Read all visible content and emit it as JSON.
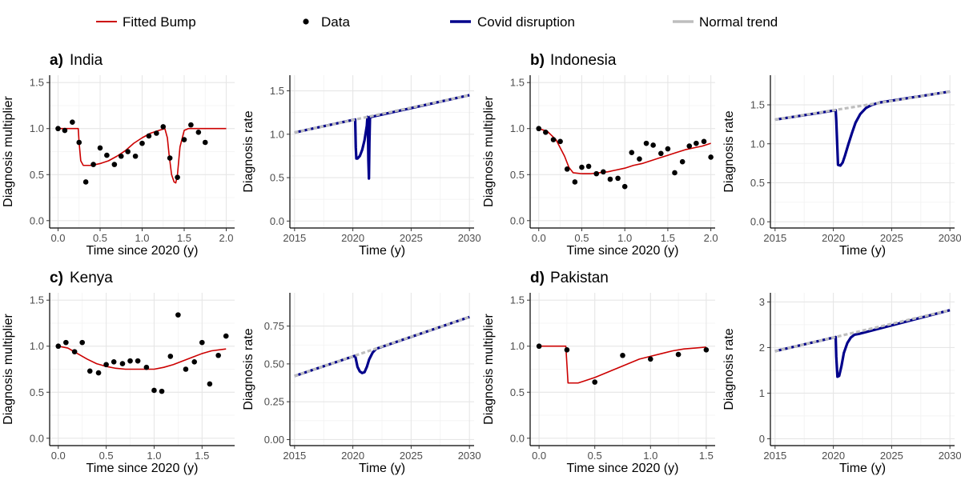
{
  "legend": {
    "items": [
      {
        "key": "fitted",
        "label": "Fitted Bump",
        "color": "#cc0000",
        "symbol": "line"
      },
      {
        "key": "data",
        "label": "Data",
        "color": "#000000",
        "symbol": "point"
      },
      {
        "key": "covid",
        "label": "Covid disruption",
        "color": "#00008b",
        "symbol": "line"
      },
      {
        "key": "normal",
        "label": "Normal trend",
        "color": "#bebebe",
        "symbol": "line"
      }
    ]
  },
  "panels": [
    {
      "tag": "a)",
      "country": "India"
    },
    {
      "tag": "b)",
      "country": "Indonesia"
    },
    {
      "tag": "c)",
      "country": "Kenya"
    },
    {
      "tag": "d)",
      "country": "Pakistan"
    }
  ],
  "chart_data": [
    {
      "id": "a-multiplier",
      "type": "line",
      "xlabel": "Time since 2020 (y)",
      "ylabel": "Diagnosis multiplier",
      "xlim": [
        -0.1,
        2.1
      ],
      "ylim": [
        -0.08,
        1.58
      ],
      "xticks": [
        "0.0",
        "0.5",
        "1.0",
        "1.5",
        "2.0"
      ],
      "yticks": [
        "0.0",
        "0.5",
        "1.0",
        "1.5"
      ],
      "points": {
        "x": [
          0,
          0.08,
          0.17,
          0.25,
          0.33,
          0.42,
          0.5,
          0.58,
          0.67,
          0.75,
          0.83,
          0.92,
          1.0,
          1.08,
          1.17,
          1.25,
          1.33,
          1.42,
          1.5,
          1.58,
          1.67,
          1.75
        ],
        "y": [
          1.0,
          0.98,
          1.07,
          0.85,
          0.42,
          0.61,
          0.79,
          0.71,
          0.61,
          0.7,
          0.75,
          0.7,
          0.84,
          0.92,
          0.95,
          1.02,
          0.68,
          0.47,
          0.88,
          1.04,
          0.96,
          0.85
        ]
      },
      "fitted": {
        "x": [
          0,
          0.24,
          0.25,
          0.27,
          0.3,
          0.35,
          0.4,
          0.5,
          0.6,
          0.7,
          0.8,
          0.9,
          1.0,
          1.1,
          1.2,
          1.27,
          1.3,
          1.32,
          1.35,
          1.38,
          1.4,
          1.42,
          1.45,
          1.5,
          1.55,
          1.6,
          2.0
        ],
        "y": [
          1.0,
          1.0,
          0.85,
          0.65,
          0.6,
          0.6,
          0.6,
          0.62,
          0.65,
          0.7,
          0.76,
          0.84,
          0.9,
          0.95,
          0.98,
          1.0,
          0.9,
          0.72,
          0.5,
          0.42,
          0.41,
          0.5,
          0.8,
          0.98,
          1.0,
          1.0,
          1.0
        ]
      }
    },
    {
      "id": "a-rate",
      "type": "line",
      "xlabel": "Time (y)",
      "ylabel": "Diagnosis rate",
      "xlim": [
        2014.6,
        2030.4
      ],
      "ylim": [
        -0.08,
        1.68
      ],
      "xticks": [
        "2015",
        "2020",
        "2025",
        "2030"
      ],
      "yticks": [
        "0.0",
        "0.5",
        "1.0",
        "1.5"
      ],
      "normal": {
        "x": [
          2015,
          2030
        ],
        "y": [
          1.02,
          1.45
        ]
      },
      "covid": {
        "x": [
          2015,
          2020.2,
          2020.25,
          2020.3,
          2020.4,
          2020.6,
          2020.8,
          2021.0,
          2021.2,
          2021.25,
          2021.3,
          2021.33,
          2021.38,
          2021.42,
          2021.47,
          2021.6,
          2030
        ],
        "y": [
          1.02,
          1.17,
          0.85,
          0.72,
          0.72,
          0.75,
          0.82,
          0.93,
          1.1,
          1.2,
          1.0,
          0.7,
          0.49,
          0.9,
          1.2,
          1.2,
          1.45
        ]
      }
    },
    {
      "id": "b-multiplier",
      "type": "line",
      "xlabel": "Time since 2020 (y)",
      "ylabel": "Diagnosis multiplier",
      "xlim": [
        -0.1,
        2.05
      ],
      "ylim": [
        -0.08,
        1.58
      ],
      "xticks": [
        "0.0",
        "0.5",
        "1.0",
        "1.5",
        "2.0"
      ],
      "yticks": [
        "0.0",
        "0.5",
        "1.0",
        "1.5"
      ],
      "points": {
        "x": [
          0,
          0.08,
          0.17,
          0.25,
          0.33,
          0.42,
          0.5,
          0.58,
          0.67,
          0.75,
          0.83,
          0.92,
          1.0,
          1.08,
          1.17,
          1.25,
          1.33,
          1.42,
          1.5,
          1.58,
          1.67,
          1.75,
          1.83,
          1.92,
          2.0
        ],
        "y": [
          1.0,
          0.96,
          0.88,
          0.86,
          0.56,
          0.42,
          0.58,
          0.59,
          0.51,
          0.53,
          0.45,
          0.46,
          0.37,
          0.74,
          0.67,
          0.84,
          0.82,
          0.73,
          0.78,
          0.52,
          0.64,
          0.81,
          0.84,
          0.86,
          0.69
        ]
      },
      "fitted": {
        "x": [
          0,
          0.1,
          0.2,
          0.3,
          0.35,
          0.4,
          0.5,
          0.6,
          0.7,
          0.8,
          0.9,
          1.0,
          1.1,
          1.2,
          1.3,
          1.4,
          1.5,
          1.6,
          1.7,
          1.8,
          1.9,
          2.0
        ],
        "y": [
          1.0,
          0.97,
          0.88,
          0.7,
          0.58,
          0.52,
          0.51,
          0.51,
          0.52,
          0.53,
          0.55,
          0.57,
          0.6,
          0.62,
          0.65,
          0.68,
          0.71,
          0.74,
          0.77,
          0.79,
          0.81,
          0.84
        ]
      }
    },
    {
      "id": "b-rate",
      "type": "line",
      "xlabel": "Time (y)",
      "ylabel": "Diagnosis rate",
      "xlim": [
        2014.6,
        2030.4
      ],
      "ylim": [
        -0.08,
        1.88
      ],
      "xticks": [
        "2015",
        "2020",
        "2025",
        "2030"
      ],
      "yticks": [
        "0.0",
        "0.5",
        "1.0",
        "1.5"
      ],
      "normal": {
        "x": [
          2015,
          2030
        ],
        "y": [
          1.31,
          1.67
        ]
      },
      "covid": {
        "x": [
          2015,
          2020.2,
          2020.25,
          2020.4,
          2020.6,
          2020.8,
          2021.0,
          2021.3,
          2021.6,
          2021.9,
          2022.3,
          2022.8,
          2023.3,
          2024.0,
          2030
        ],
        "y": [
          1.31,
          1.43,
          1.3,
          0.73,
          0.72,
          0.76,
          0.85,
          1.0,
          1.14,
          1.27,
          1.38,
          1.46,
          1.5,
          1.53,
          1.67
        ]
      }
    },
    {
      "id": "c-multiplier",
      "type": "line",
      "xlabel": "Time since 2020 (y)",
      "ylabel": "Diagnosis multiplier",
      "xlim": [
        -0.09,
        1.84
      ],
      "ylim": [
        -0.08,
        1.58
      ],
      "xticks": [
        "0.0",
        "0.5",
        "1.0",
        "1.5"
      ],
      "yticks": [
        "0.0",
        "0.5",
        "1.0",
        "1.5"
      ],
      "points": {
        "x": [
          0,
          0.08,
          0.17,
          0.25,
          0.33,
          0.42,
          0.5,
          0.58,
          0.67,
          0.75,
          0.83,
          0.92,
          1.0,
          1.08,
          1.17,
          1.25,
          1.33,
          1.42,
          1.5,
          1.58,
          1.67,
          1.75
        ],
        "y": [
          1.0,
          1.04,
          0.94,
          1.04,
          0.73,
          0.71,
          0.8,
          0.83,
          0.81,
          0.84,
          0.84,
          0.77,
          0.52,
          0.51,
          0.89,
          1.34,
          0.75,
          0.83,
          1.04,
          0.59,
          0.9,
          1.11
        ]
      },
      "fitted": {
        "x": [
          0,
          0.1,
          0.2,
          0.3,
          0.4,
          0.5,
          0.6,
          0.7,
          0.8,
          0.9,
          1.0,
          1.1,
          1.2,
          1.3,
          1.4,
          1.5,
          1.6,
          1.75
        ],
        "y": [
          1.0,
          0.98,
          0.92,
          0.86,
          0.81,
          0.78,
          0.76,
          0.75,
          0.75,
          0.75,
          0.75,
          0.77,
          0.8,
          0.84,
          0.88,
          0.92,
          0.95,
          0.97
        ]
      }
    },
    {
      "id": "c-rate",
      "type": "line",
      "xlabel": "Time (y)",
      "ylabel": "Diagnosis rate",
      "xlim": [
        2014.6,
        2030.4
      ],
      "ylim": [
        -0.04,
        0.97
      ],
      "xticks": [
        "2015",
        "2020",
        "2025",
        "2030"
      ],
      "yticks": [
        "0.00",
        "0.25",
        "0.50",
        "0.75"
      ],
      "normal": {
        "x": [
          2015,
          2030
        ],
        "y": [
          0.42,
          0.81
        ]
      },
      "covid": {
        "x": [
          2015,
          2020.2,
          2020.4,
          2020.6,
          2020.8,
          2021.0,
          2021.2,
          2021.4,
          2021.7,
          2022.0,
          2030
        ],
        "y": [
          0.42,
          0.554,
          0.48,
          0.45,
          0.44,
          0.445,
          0.48,
          0.53,
          0.575,
          0.6,
          0.81
        ]
      }
    },
    {
      "id": "d-multiplier",
      "type": "line",
      "xlabel": "Time since 2020 (y)",
      "ylabel": "Diagnosis multiplier",
      "xlim": [
        -0.08,
        1.58
      ],
      "ylim": [
        -0.08,
        1.58
      ],
      "xticks": [
        "0.0",
        "0.5",
        "1.0",
        "1.5"
      ],
      "yticks": [
        "0.0",
        "0.5",
        "1.0",
        "1.5"
      ],
      "points": {
        "x": [
          0,
          0.25,
          0.5,
          0.75,
          1.0,
          1.25,
          1.5
        ],
        "y": [
          1.0,
          0.96,
          0.61,
          0.9,
          0.86,
          0.91,
          0.96
        ]
      },
      "fitted": {
        "x": [
          0,
          0.24,
          0.25,
          0.26,
          0.3,
          0.35,
          0.4,
          0.5,
          0.6,
          0.7,
          0.8,
          0.9,
          1.0,
          1.1,
          1.2,
          1.3,
          1.4,
          1.5
        ],
        "y": [
          1.0,
          1.0,
          0.8,
          0.6,
          0.6,
          0.6,
          0.62,
          0.66,
          0.71,
          0.76,
          0.81,
          0.86,
          0.89,
          0.92,
          0.95,
          0.97,
          0.98,
          0.99
        ]
      }
    },
    {
      "id": "d-rate",
      "type": "line",
      "xlabel": "Time (y)",
      "ylabel": "Diagnosis rate",
      "xlim": [
        2014.6,
        2030.4
      ],
      "ylim": [
        -0.15,
        3.2
      ],
      "xticks": [
        "2015",
        "2020",
        "2025",
        "2030"
      ],
      "yticks": [
        "0",
        "1",
        "2",
        "3"
      ],
      "normal": {
        "x": [
          2015,
          2030
        ],
        "y": [
          1.92,
          2.82
        ]
      },
      "covid": {
        "x": [
          2015,
          2020.2,
          2020.25,
          2020.35,
          2020.5,
          2020.7,
          2020.9,
          2021.2,
          2021.5,
          2021.8,
          2022.2,
          2030
        ],
        "y": [
          1.92,
          2.23,
          1.8,
          1.36,
          1.38,
          1.6,
          1.88,
          2.1,
          2.22,
          2.28,
          2.3,
          2.82
        ]
      }
    }
  ]
}
